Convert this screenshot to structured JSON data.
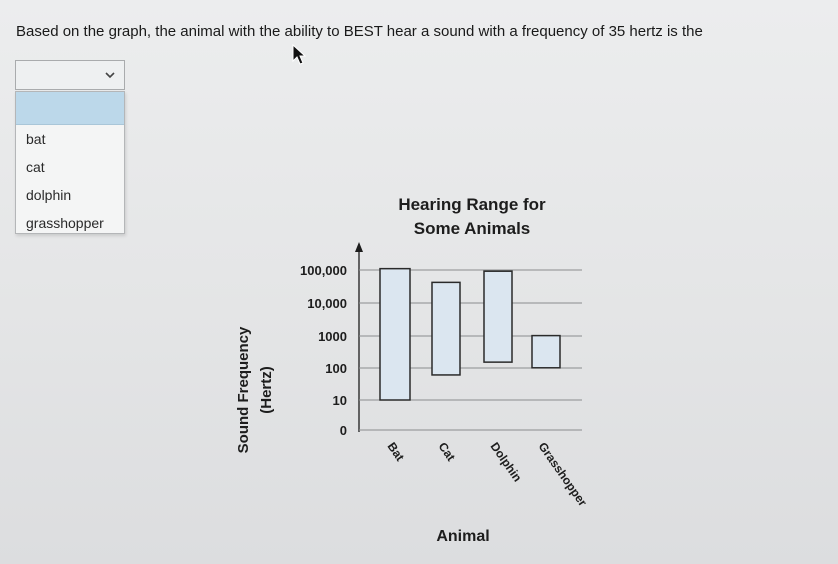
{
  "question": {
    "text": "Based on the graph, the animal with the ability to BEST hear a sound with a frequency of 35 hertz is the"
  },
  "dropdown": {
    "selected_value": "",
    "highlighted_option": "",
    "options": [
      "bat",
      "cat",
      "dolphin",
      "grasshopper"
    ]
  },
  "colors": {
    "bar_fill": "#dbe6f0",
    "highlight": "#bcd8ea",
    "gridline": "#8a8c8e"
  },
  "chart_data": {
    "type": "bar",
    "title_lines": [
      "Hearing Range for",
      "Some Animals"
    ],
    "xlabel": "Animal",
    "ylabel_lines": [
      "Sound Frequency",
      "(Hertz)"
    ],
    "y_scale": "log",
    "y_ticks": [
      "0",
      "10",
      "100",
      "1000",
      "10,000",
      "100,000"
    ],
    "categories": [
      "Bat",
      "Cat",
      "Dolphin",
      "Grasshopper"
    ],
    "ranges": [
      {
        "low": 10,
        "high": 120000
      },
      {
        "low": 60,
        "high": 45000
      },
      {
        "low": 150,
        "high": 100000
      },
      {
        "low": 100,
        "high": 1000
      }
    ],
    "grid": true
  }
}
